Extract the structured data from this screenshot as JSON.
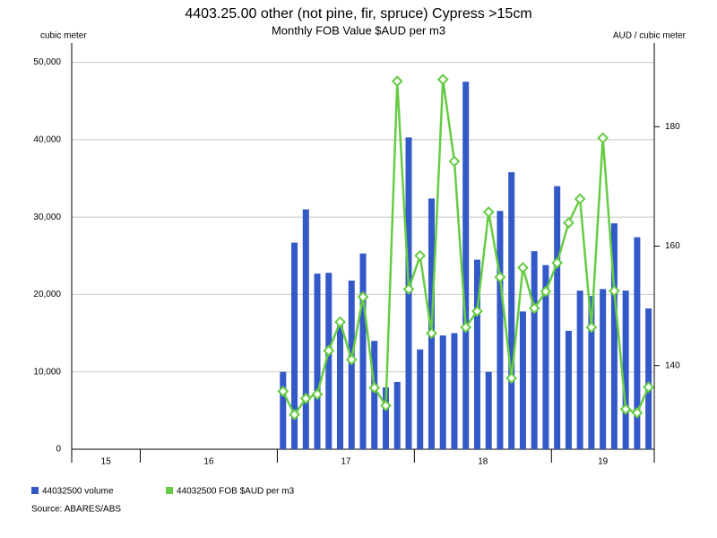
{
  "chart_data": {
    "type": "combo",
    "title": "4403.25.00 other (not pine, fir, spruce) Cypress >15cm",
    "subtitle": "Monthly FOB Value $AUD per m3",
    "y_label": "cubic meter",
    "y2_label": "AUD / cubic meter",
    "source": "Source: ABARES/ABS",
    "categories": [
      null,
      null,
      null,
      null,
      null,
      null,
      null,
      null,
      null,
      null,
      null,
      null,
      null,
      null,
      null,
      null,
      null,
      null,
      null,
      null,
      null,
      null,
      null,
      null,
      null,
      null,
      null,
      null,
      null,
      null,
      null,
      null,
      null,
      null,
      null,
      null,
      null,
      null,
      null,
      null,
      null,
      null,
      null,
      null,
      null,
      null,
      null,
      null,
      null,
      null,
      null
    ],
    "x_groups": [
      {
        "label": "15",
        "months": 6
      },
      {
        "label": "16",
        "months": 12
      },
      {
        "label": "17",
        "months": 12
      },
      {
        "label": "18",
        "months": 12
      },
      {
        "label": "19",
        "months": 9
      }
    ],
    "ylim": [
      0,
      52500
    ],
    "yticks": [
      0,
      {
        "value": 10000,
        "label": "10,000"
      },
      {
        "value": 20000,
        "label": "20,000"
      },
      {
        "value": 30000,
        "label": "30,000"
      },
      {
        "value": 40000,
        "label": "40,000"
      },
      {
        "value": 50000,
        "label": "50,000"
      }
    ],
    "y2lim": [
      126,
      194
    ],
    "y2ticks": [
      140,
      160,
      180
    ],
    "grid": true,
    "series": [
      {
        "name": "44032500 volume",
        "type": "bar",
        "color": "#3358c8",
        "values": [
          null,
          null,
          null,
          null,
          null,
          null,
          null,
          null,
          null,
          null,
          null,
          null,
          null,
          null,
          null,
          null,
          null,
          null,
          10000,
          26700,
          31000,
          22700,
          22800,
          16000,
          21800,
          25300,
          14000,
          8000,
          8700,
          40300,
          12900,
          32400,
          14700,
          15000,
          47500,
          24500,
          10000,
          30800,
          35800,
          17800,
          25600,
          23800,
          34000,
          15300,
          20500,
          19800,
          20700,
          29200,
          20500,
          27400,
          18200
        ]
      },
      {
        "name": "44032500 FOB $AUD per m3",
        "type": "line",
        "axis": "y2",
        "color": "#66cc44",
        "values": [
          null,
          null,
          null,
          null,
          null,
          null,
          null,
          null,
          null,
          null,
          null,
          null,
          null,
          null,
          null,
          null,
          null,
          null,
          135.7,
          131.8,
          134.5,
          135.2,
          142.5,
          147.3,
          141.0,
          151.5,
          136.3,
          133.3,
          187.6,
          152.8,
          158.4,
          145.4,
          187.9,
          174.2,
          146.4,
          149.1,
          165.7,
          154.8,
          137.9,
          156.4,
          149.6,
          152.4,
          157.2,
          163.9,
          167.9,
          146.4,
          178.1,
          152.5,
          132.7,
          132.1,
          136.4
        ]
      }
    ]
  }
}
